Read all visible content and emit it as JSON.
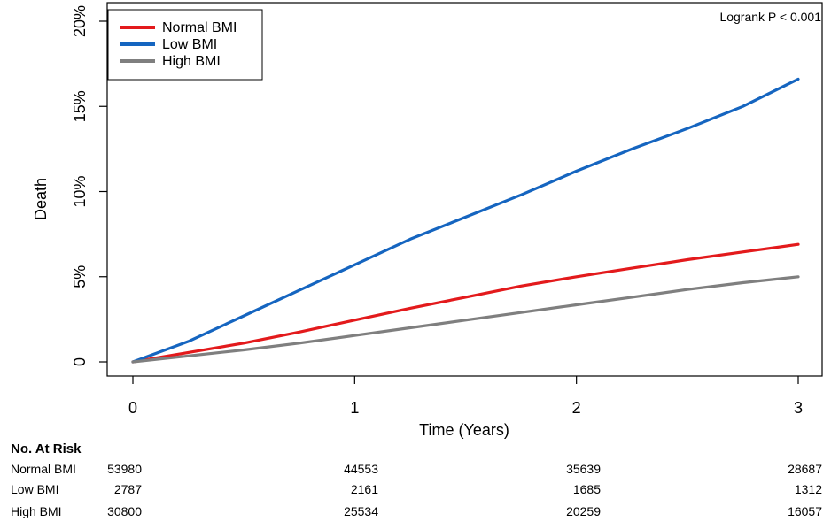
{
  "chart_data": {
    "type": "line",
    "title": "",
    "xlabel": "Time (Years)",
    "ylabel": "Death",
    "xlim": [
      0,
      3
    ],
    "ylim": [
      0,
      0.2
    ],
    "x_ticks": [
      "0",
      "1",
      "2",
      "3"
    ],
    "y_ticks": [
      "0",
      "5%",
      "10%",
      "15%",
      "20%"
    ],
    "annotation": "Logrank P < 0.001",
    "legend_position": "top-left",
    "grid": false,
    "x": [
      0,
      0.25,
      0.5,
      0.75,
      1.0,
      1.25,
      1.5,
      1.75,
      2.0,
      2.25,
      2.5,
      2.75,
      3.0
    ],
    "series": [
      {
        "name": "Normal BMI",
        "color": "#e31a1c",
        "values": [
          0,
          0.0055,
          0.011,
          0.0175,
          0.0245,
          0.0315,
          0.038,
          0.0445,
          0.05,
          0.055,
          0.06,
          0.0645,
          0.069
        ]
      },
      {
        "name": "Low BMI",
        "color": "#1565c0",
        "values": [
          0,
          0.012,
          0.027,
          0.042,
          0.057,
          0.072,
          0.085,
          0.098,
          0.112,
          0.125,
          0.137,
          0.15,
          0.166
        ]
      },
      {
        "name": "High BMI",
        "color": "#7f7f7f",
        "values": [
          0,
          0.0035,
          0.007,
          0.011,
          0.0155,
          0.02,
          0.0245,
          0.029,
          0.0335,
          0.038,
          0.0425,
          0.0465,
          0.05
        ]
      }
    ]
  },
  "at_risk": {
    "title": "No. At Risk",
    "rows": [
      {
        "label": "Normal BMI",
        "values": [
          "53980",
          "44553",
          "35639",
          "28687"
        ]
      },
      {
        "label": "Low BMI",
        "values": [
          "2787",
          "2161",
          "1685",
          "1312"
        ]
      },
      {
        "label": "High BMI",
        "values": [
          "30800",
          "25534",
          "20259",
          "16057"
        ]
      }
    ]
  }
}
